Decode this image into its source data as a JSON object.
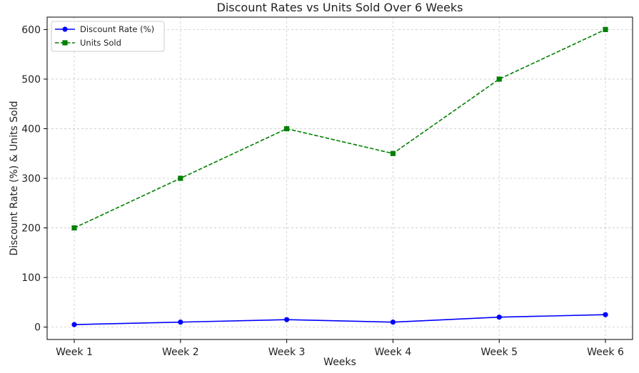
{
  "chart_data": {
    "type": "line",
    "title": "Discount Rates vs Units Sold Over 6 Weeks",
    "xlabel": "Weeks",
    "ylabel": "Discount Rate (%) & Units Sold",
    "categories": [
      "Week 1",
      "Week 2",
      "Week 3",
      "Week 4",
      "Week 5",
      "Week 6"
    ],
    "ylim": [
      -25,
      625
    ],
    "yticks": [
      0,
      100,
      200,
      300,
      400,
      500,
      600
    ],
    "grid": true,
    "legend_position": "top-left",
    "series": [
      {
        "name": "Discount Rate (%)",
        "values": [
          5,
          10,
          15,
          10,
          20,
          25
        ],
        "color": "#0000ff",
        "line_style": "solid",
        "marker": "circle"
      },
      {
        "name": "Units Sold",
        "values": [
          200,
          300,
          400,
          350,
          500,
          600
        ],
        "color": "#008000",
        "line_style": "dashed",
        "marker": "square"
      }
    ]
  }
}
